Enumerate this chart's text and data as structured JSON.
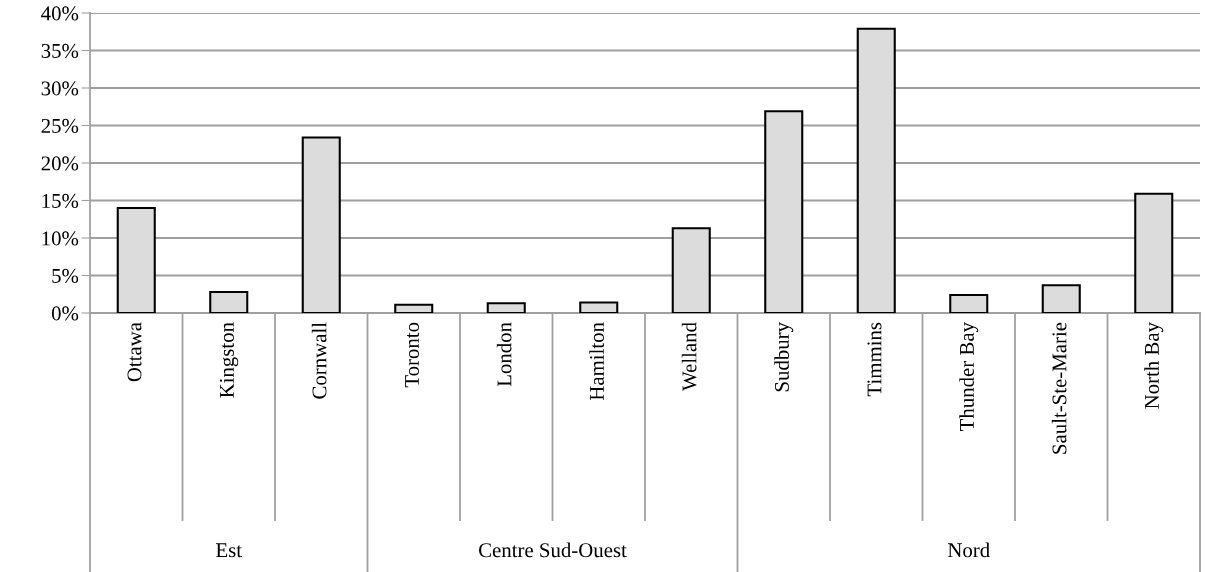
{
  "chart_data": {
    "type": "bar",
    "categories": [
      "Ottawa",
      "Kingston",
      "Cornwall",
      "Toronto",
      "London",
      "Hamilton",
      "Welland",
      "Sudbury",
      "Timmins",
      "Thunder Bay",
      "Sault-Ste-Marie",
      "North Bay"
    ],
    "values": [
      14,
      2.8,
      23.4,
      1.1,
      1.3,
      1.4,
      11.3,
      26.9,
      37.9,
      2.4,
      3.7,
      15.9
    ],
    "color": "#dcdcdc",
    "ylim": [
      0,
      40
    ],
    "yticks": [
      {
        "value": 0,
        "label": "0%"
      },
      {
        "value": 5,
        "label": "5%"
      },
      {
        "value": 10,
        "label": "10%"
      },
      {
        "value": 15,
        "label": "15%"
      },
      {
        "value": 20,
        "label": "20%"
      },
      {
        "value": 25,
        "label": "25%"
      },
      {
        "value": 30,
        "label": "30%"
      },
      {
        "value": 35,
        "label": "35%"
      },
      {
        "value": 40,
        "label": "40%"
      }
    ],
    "grid": "y",
    "annotations": [
      "Est",
      "Centre Sud-Ouest",
      "Nord"
    ]
  }
}
